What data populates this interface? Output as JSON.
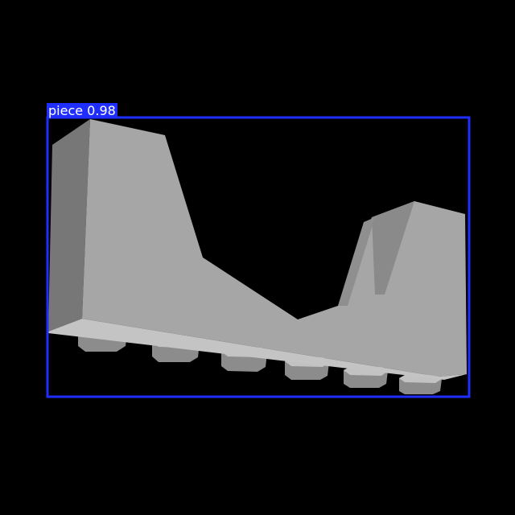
{
  "detection": {
    "label": "piece 0.98",
    "color": "#1f2eff"
  },
  "scene": {
    "background": "#000000",
    "object_colors": {
      "front": "#a8a8a8",
      "side": "#7a7a7a",
      "stud_top": "#bdbdbd",
      "stud_side": "#8a8a8a"
    }
  }
}
